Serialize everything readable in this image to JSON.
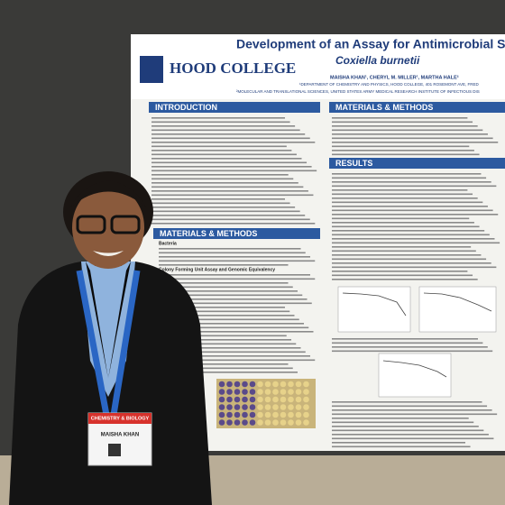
{
  "poster": {
    "title": "Development of an Assay for Antimicrobial Suscep",
    "subtitle": "Coxiella burnetii",
    "logo": "HOOD COLLEGE",
    "authors": "MAISHA KHAN¹, CHERYL M. MILLER¹, MARTHA HALE²",
    "affiliations": [
      "¹DEPARTMENT OF CHEMISTRY AND PHYSICS, HOOD COLLEGE, 401 ROSEMONT AVE, FRED",
      "²MOLECULAR AND TRANSLATIONAL SCIENCES, UNITED STATES ARMY MEDICAL RESEARCH INSTITUTE OF INFECTIOUS DIS"
    ],
    "sections": [
      "INTRODUCTION",
      "MATERIALS & METHODS",
      "MATERIALS & METHODS",
      "RESULTS"
    ],
    "subheadings": [
      "Bacteria",
      "Colony Forming Unit Assay and Genomic Equivalency"
    ]
  },
  "badge": {
    "event": "CHEMISTRY & BIOLOGY",
    "name": "MAISHA KHAN"
  }
}
